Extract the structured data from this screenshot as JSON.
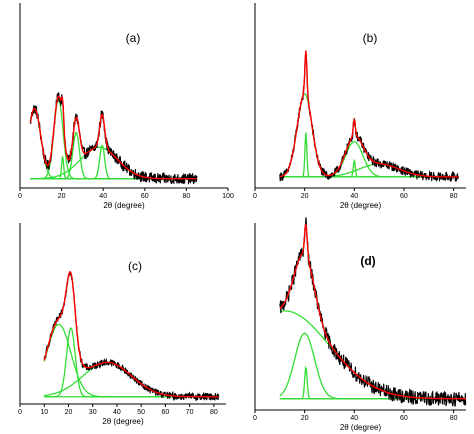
{
  "chart_data": [
    {
      "panel": "(a)",
      "label_bold": false,
      "type": "line",
      "xlabel": "2θ (degree)",
      "xlim": [
        0,
        100
      ],
      "xticks": [
        0,
        20,
        40,
        60,
        80,
        100
      ],
      "ylim": [
        0,
        1
      ],
      "y_ticks_shown": false,
      "x_data_range": [
        5,
        85
      ],
      "baseline": 0.05,
      "raw_color": "#000000",
      "fit_color": "#ff0000",
      "peak_color": "#33dd33",
      "peaks": [
        {
          "center": 7,
          "height": 0.38,
          "width": 3.0
        },
        {
          "center": 18.5,
          "height": 0.43,
          "width": 2.2
        },
        {
          "center": 20.5,
          "height": 0.12,
          "width": 0.5
        },
        {
          "center": 27,
          "height": 0.25,
          "width": 1.6
        },
        {
          "center": 39.5,
          "height": 0.18,
          "width": 1.2
        },
        {
          "center": 38,
          "height": 0.17,
          "width": 9
        }
      ],
      "noise": 0.03
    },
    {
      "panel": "(b)",
      "label_bold": false,
      "type": "line",
      "xlabel": "2θ (degree)",
      "xlim": [
        0,
        85
      ],
      "xticks": [
        0,
        20,
        40,
        60,
        80
      ],
      "ylim": [
        0,
        1
      ],
      "y_ticks_shown": false,
      "x_data_range": [
        10,
        82
      ],
      "baseline": 0.06,
      "raw_color": "#000000",
      "fit_color": "#ff0000",
      "peak_color": "#33dd33",
      "peaks": [
        {
          "center": 20,
          "height": 0.45,
          "width": 3.0
        },
        {
          "center": 20.5,
          "height": 0.24,
          "width": 0.4
        },
        {
          "center": 40,
          "height": 0.19,
          "width": 3.5
        },
        {
          "center": 40,
          "height": 0.09,
          "width": 0.4
        },
        {
          "center": 50,
          "height": 0.07,
          "width": 8
        }
      ],
      "noise": 0.025
    },
    {
      "panel": "(c)",
      "label_bold": false,
      "type": "line",
      "xlabel": "2θ (degree)",
      "xlim": [
        0,
        85
      ],
      "xticks": [
        0,
        10,
        20,
        30,
        40,
        50,
        60,
        70,
        80
      ],
      "ylim": [
        0,
        1
      ],
      "y_ticks_shown": false,
      "x_data_range": [
        10,
        82
      ],
      "baseline": 0.04,
      "raw_color": "#000000",
      "fit_color": "#ff0000",
      "peak_color": "#33dd33",
      "peaks": [
        {
          "center": 16,
          "height": 0.4,
          "width": 5.0
        },
        {
          "center": 21,
          "height": 0.38,
          "width": 1.8
        },
        {
          "center": 36,
          "height": 0.19,
          "width": 10
        }
      ],
      "noise": 0.02
    },
    {
      "panel": "(d)",
      "label_bold": true,
      "type": "line",
      "xlabel": "2θ (degree)",
      "xlim": [
        0,
        85
      ],
      "xticks": [
        0,
        20,
        40,
        60,
        80
      ],
      "ylim": [
        0,
        1
      ],
      "y_ticks_shown": false,
      "x_data_range": [
        10,
        85
      ],
      "baseline": 0.06,
      "raw_color": "#000000",
      "fit_color": "#ff0000",
      "peak_color": "#33dd33",
      "peaks": [
        {
          "center": 20,
          "height": 0.35,
          "width": 4.0
        },
        {
          "center": 20.5,
          "height": 0.17,
          "width": 0.5
        },
        {
          "center": 12,
          "height": 0.47,
          "width": 18
        }
      ],
      "noise": 0.04
    }
  ]
}
